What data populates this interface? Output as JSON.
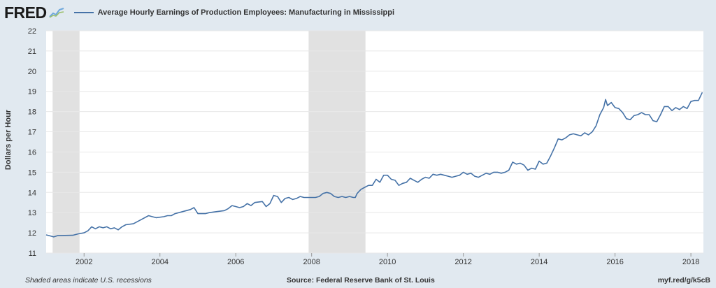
{
  "header": {
    "logo_text": "FRED",
    "legend_label": "Average Hourly Earnings of Production Employees: Manufacturing in Mississippi"
  },
  "footer": {
    "recession_note": "Shaded areas indicate U.S. recessions",
    "source": "Source: Federal Reserve Bank of St. Louis",
    "short_url": "myf.red/g/k5cB"
  },
  "colors": {
    "line": "#4572a7",
    "recession": "#e1e1e1",
    "background": "#e1e9f0",
    "plot": "#ffffff",
    "grid": "#e8e8e8"
  },
  "chart_data": {
    "type": "line",
    "title": "",
    "xlabel": "",
    "ylabel": "Dollars per Hour",
    "xlim": [
      2001.0,
      2018.33
    ],
    "ylim": [
      11,
      22
    ],
    "grid": true,
    "legend": "top-left",
    "x_ticks": [
      2002,
      2004,
      2006,
      2008,
      2010,
      2012,
      2014,
      2016,
      2018
    ],
    "y_ticks": [
      11,
      12,
      13,
      14,
      15,
      16,
      17,
      18,
      19,
      20,
      21,
      22
    ],
    "recessions": [
      [
        2001.17,
        2001.88
      ],
      [
        2007.92,
        2009.42
      ]
    ],
    "series": [
      {
        "name": "Average Hourly Earnings of Production Employees: Manufacturing in Mississippi",
        "points": [
          [
            2001.0,
            11.9
          ],
          [
            2001.1,
            11.85
          ],
          [
            2001.2,
            11.8
          ],
          [
            2001.3,
            11.86
          ],
          [
            2001.5,
            11.87
          ],
          [
            2001.7,
            11.88
          ],
          [
            2001.85,
            11.95
          ],
          [
            2002.0,
            12.0
          ],
          [
            2002.1,
            12.1
          ],
          [
            2002.2,
            12.3
          ],
          [
            2002.3,
            12.2
          ],
          [
            2002.4,
            12.3
          ],
          [
            2002.5,
            12.25
          ],
          [
            2002.6,
            12.3
          ],
          [
            2002.7,
            12.2
          ],
          [
            2002.8,
            12.25
          ],
          [
            2002.9,
            12.15
          ],
          [
            2003.0,
            12.3
          ],
          [
            2003.1,
            12.4
          ],
          [
            2003.3,
            12.45
          ],
          [
            2003.5,
            12.65
          ],
          [
            2003.7,
            12.85
          ],
          [
            2003.8,
            12.8
          ],
          [
            2003.9,
            12.75
          ],
          [
            2004.1,
            12.8
          ],
          [
            2004.2,
            12.85
          ],
          [
            2004.3,
            12.85
          ],
          [
            2004.4,
            12.95
          ],
          [
            2004.6,
            13.05
          ],
          [
            2004.8,
            13.15
          ],
          [
            2004.9,
            13.25
          ],
          [
            2005.0,
            12.95
          ],
          [
            2005.2,
            12.95
          ],
          [
            2005.3,
            13.0
          ],
          [
            2005.5,
            13.05
          ],
          [
            2005.7,
            13.1
          ],
          [
            2005.8,
            13.2
          ],
          [
            2005.9,
            13.35
          ],
          [
            2006.0,
            13.3
          ],
          [
            2006.1,
            13.25
          ],
          [
            2006.2,
            13.3
          ],
          [
            2006.3,
            13.45
          ],
          [
            2006.4,
            13.35
          ],
          [
            2006.5,
            13.5
          ],
          [
            2006.7,
            13.55
          ],
          [
            2006.8,
            13.3
          ],
          [
            2006.9,
            13.45
          ],
          [
            2007.0,
            13.85
          ],
          [
            2007.1,
            13.8
          ],
          [
            2007.2,
            13.5
          ],
          [
            2007.3,
            13.7
          ],
          [
            2007.4,
            13.75
          ],
          [
            2007.5,
            13.65
          ],
          [
            2007.6,
            13.7
          ],
          [
            2007.7,
            13.8
          ],
          [
            2007.8,
            13.75
          ],
          [
            2007.9,
            13.75
          ],
          [
            2008.0,
            13.75
          ],
          [
            2008.1,
            13.75
          ],
          [
            2008.2,
            13.8
          ],
          [
            2008.3,
            13.95
          ],
          [
            2008.4,
            14.0
          ],
          [
            2008.5,
            13.95
          ],
          [
            2008.6,
            13.8
          ],
          [
            2008.7,
            13.75
          ],
          [
            2008.8,
            13.8
          ],
          [
            2008.9,
            13.75
          ],
          [
            2009.0,
            13.8
          ],
          [
            2009.1,
            13.75
          ],
          [
            2009.15,
            13.75
          ],
          [
            2009.2,
            13.95
          ],
          [
            2009.3,
            14.15
          ],
          [
            2009.4,
            14.25
          ],
          [
            2009.5,
            14.35
          ],
          [
            2009.6,
            14.35
          ],
          [
            2009.7,
            14.65
          ],
          [
            2009.8,
            14.5
          ],
          [
            2009.9,
            14.85
          ],
          [
            2010.0,
            14.85
          ],
          [
            2010.1,
            14.65
          ],
          [
            2010.2,
            14.6
          ],
          [
            2010.3,
            14.35
          ],
          [
            2010.4,
            14.45
          ],
          [
            2010.5,
            14.5
          ],
          [
            2010.6,
            14.7
          ],
          [
            2010.7,
            14.6
          ],
          [
            2010.8,
            14.5
          ],
          [
            2010.9,
            14.65
          ],
          [
            2011.0,
            14.75
          ],
          [
            2011.1,
            14.7
          ],
          [
            2011.2,
            14.9
          ],
          [
            2011.3,
            14.85
          ],
          [
            2011.4,
            14.9
          ],
          [
            2011.5,
            14.85
          ],
          [
            2011.6,
            14.8
          ],
          [
            2011.7,
            14.75
          ],
          [
            2011.8,
            14.8
          ],
          [
            2011.9,
            14.85
          ],
          [
            2012.0,
            15.0
          ],
          [
            2012.1,
            14.9
          ],
          [
            2012.2,
            14.95
          ],
          [
            2012.3,
            14.8
          ],
          [
            2012.4,
            14.75
          ],
          [
            2012.5,
            14.85
          ],
          [
            2012.6,
            14.95
          ],
          [
            2012.7,
            14.9
          ],
          [
            2012.8,
            15.0
          ],
          [
            2012.9,
            15.0
          ],
          [
            2013.0,
            14.95
          ],
          [
            2013.1,
            15.0
          ],
          [
            2013.2,
            15.1
          ],
          [
            2013.3,
            15.5
          ],
          [
            2013.4,
            15.4
          ],
          [
            2013.5,
            15.45
          ],
          [
            2013.6,
            15.35
          ],
          [
            2013.7,
            15.1
          ],
          [
            2013.8,
            15.2
          ],
          [
            2013.9,
            15.15
          ],
          [
            2014.0,
            15.55
          ],
          [
            2014.1,
            15.4
          ],
          [
            2014.2,
            15.45
          ],
          [
            2014.3,
            15.8
          ],
          [
            2014.4,
            16.2
          ],
          [
            2014.5,
            16.65
          ],
          [
            2014.6,
            16.6
          ],
          [
            2014.7,
            16.7
          ],
          [
            2014.8,
            16.85
          ],
          [
            2014.9,
            16.9
          ],
          [
            2015.0,
            16.85
          ],
          [
            2015.1,
            16.8
          ],
          [
            2015.2,
            16.95
          ],
          [
            2015.3,
            16.85
          ],
          [
            2015.4,
            17.0
          ],
          [
            2015.5,
            17.3
          ],
          [
            2015.6,
            17.85
          ],
          [
            2015.7,
            18.2
          ],
          [
            2015.75,
            18.6
          ],
          [
            2015.8,
            18.3
          ],
          [
            2015.9,
            18.45
          ],
          [
            2016.0,
            18.2
          ],
          [
            2016.1,
            18.15
          ],
          [
            2016.2,
            17.95
          ],
          [
            2016.3,
            17.65
          ],
          [
            2016.4,
            17.6
          ],
          [
            2016.5,
            17.8
          ],
          [
            2016.6,
            17.85
          ],
          [
            2016.7,
            17.95
          ],
          [
            2016.8,
            17.85
          ],
          [
            2016.9,
            17.85
          ],
          [
            2017.0,
            17.55
          ],
          [
            2017.1,
            17.5
          ],
          [
            2017.2,
            17.85
          ],
          [
            2017.3,
            18.25
          ],
          [
            2017.4,
            18.25
          ],
          [
            2017.5,
            18.05
          ],
          [
            2017.6,
            18.2
          ],
          [
            2017.7,
            18.1
          ],
          [
            2017.8,
            18.25
          ],
          [
            2017.9,
            18.15
          ],
          [
            2018.0,
            18.5
          ],
          [
            2018.1,
            18.55
          ],
          [
            2018.2,
            18.55
          ],
          [
            2018.3,
            18.95
          ]
        ]
      }
    ]
  }
}
